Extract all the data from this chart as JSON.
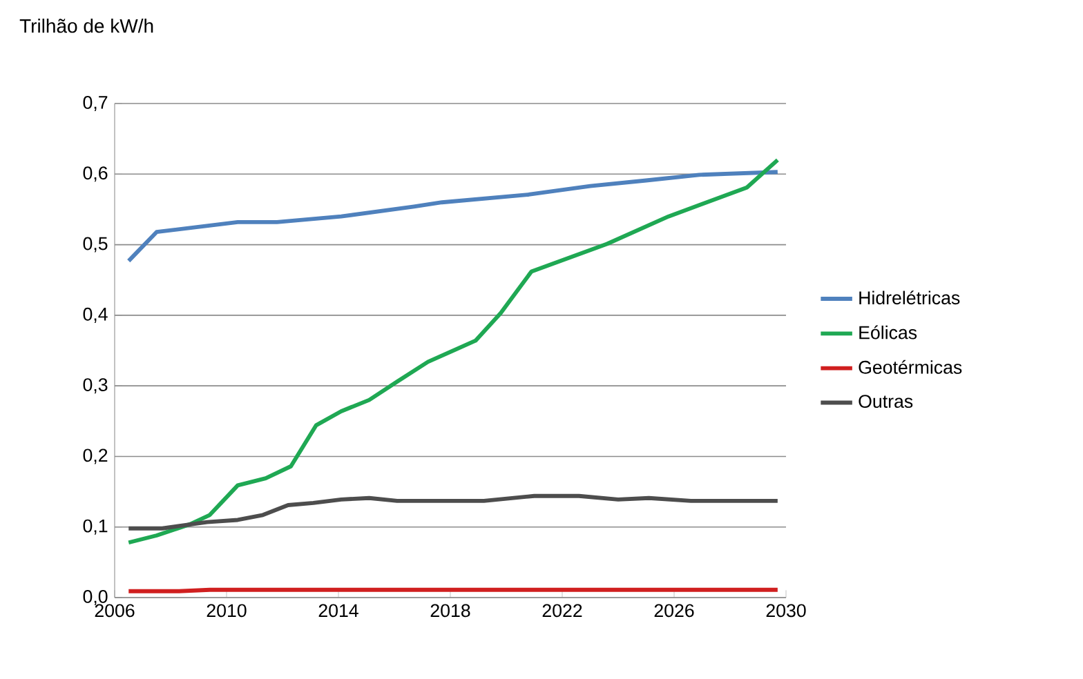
{
  "chart_data": {
    "type": "line",
    "title": "Trilhão de kW/h",
    "xlim": [
      2006,
      2030
    ],
    "xticks": [
      2006,
      2010,
      2014,
      2018,
      2022,
      2026,
      2030
    ],
    "ylim": [
      0,
      0.7
    ],
    "yticks": [
      {
        "value": 0,
        "label": "0,0"
      },
      {
        "value": 0.1,
        "label": "0,1"
      },
      {
        "value": 0.2,
        "label": "0,2"
      },
      {
        "value": 0.3,
        "label": "0,3"
      },
      {
        "value": 0.4,
        "label": "0,4"
      },
      {
        "value": 0.5,
        "label": "0,5"
      },
      {
        "value": 0.6,
        "label": "0,6"
      },
      {
        "value": 0.7,
        "label": "0,7"
      }
    ],
    "grid": "y",
    "legend": "right",
    "marker": "none",
    "line_style": "solid",
    "series": [
      {
        "name": "Hidrelétricas",
        "color": "#4f81bd",
        "x": [
          2006.5,
          2007.5,
          2010.4,
          2011.8,
          2014.1,
          2016.7,
          2017.7,
          2020.8,
          2023.0,
          2025.0,
          2026.9,
          2029.7
        ],
        "values": [
          0.477,
          0.518,
          0.532,
          0.532,
          0.54,
          0.554,
          0.56,
          0.571,
          0.583,
          0.591,
          0.599,
          0.603
        ]
      },
      {
        "name": "Eólicas",
        "color": "#1fa853",
        "x": [
          2006.5,
          2007.5,
          2008.7,
          2009.4,
          2010.4,
          2011.4,
          2012.3,
          2013.2,
          2014.1,
          2015.1,
          2016.1,
          2017.2,
          2018.9,
          2019.8,
          2020.9,
          2023.6,
          2025.8,
          2028.6,
          2029.7
        ],
        "values": [
          0.078,
          0.088,
          0.104,
          0.117,
          0.159,
          0.169,
          0.186,
          0.244,
          0.264,
          0.28,
          0.306,
          0.334,
          0.364,
          0.403,
          0.462,
          0.501,
          0.54,
          0.581,
          0.62
        ]
      },
      {
        "name": "Geotérmicas",
        "color": "#d01f1f",
        "x": [
          2006.5,
          2008.3,
          2009.4,
          2029.7
        ],
        "values": [
          0.009,
          0.009,
          0.011,
          0.011
        ]
      },
      {
        "name": "Outras",
        "color": "#4d4d4d",
        "x": [
          2006.5,
          2007.7,
          2009.3,
          2010.4,
          2011.3,
          2012.2,
          2013.1,
          2014.1,
          2015.1,
          2016.1,
          2019.2,
          2021.0,
          2022.6,
          2024.0,
          2025.1,
          2026.6,
          2029.7
        ],
        "values": [
          0.098,
          0.098,
          0.107,
          0.11,
          0.117,
          0.131,
          0.134,
          0.139,
          0.141,
          0.137,
          0.137,
          0.144,
          0.144,
          0.139,
          0.141,
          0.137,
          0.137
        ]
      }
    ]
  }
}
